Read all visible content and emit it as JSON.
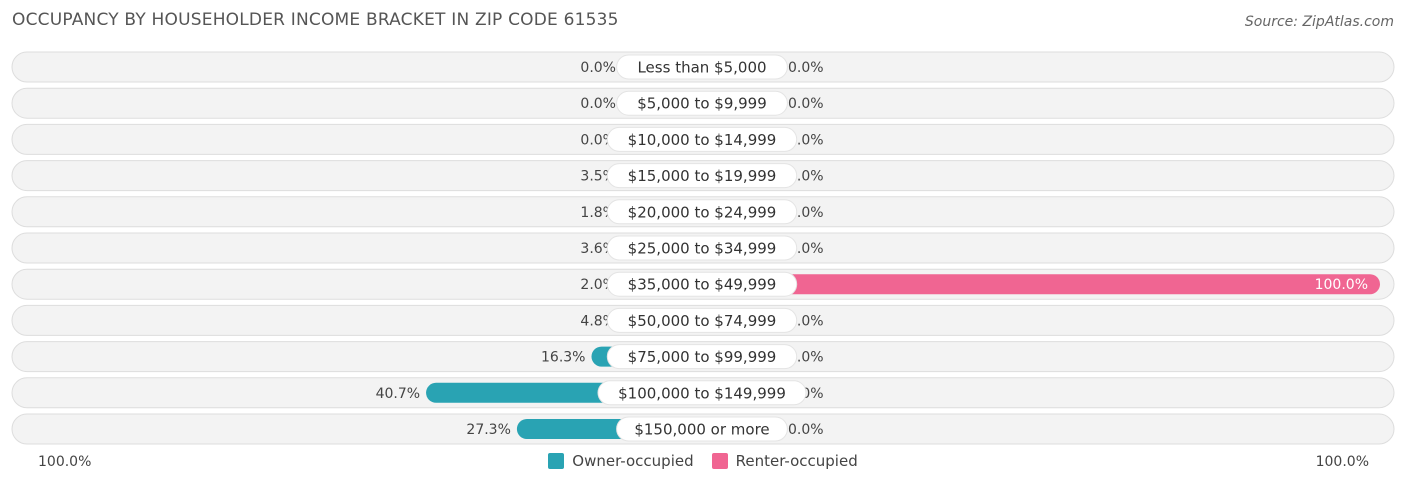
{
  "header": {
    "title": "OCCUPANCY BY HOUSEHOLDER INCOME BRACKET IN ZIP CODE 61535",
    "source": "Source: ZipAtlas.com"
  },
  "colors": {
    "owner": "#4bbcc8",
    "owner_light": "#88cdd6",
    "owner_dark": "#29a3b3",
    "renter": "#f06592",
    "renter_light": "#f5a8c1",
    "row_bg": "#f1f1f1",
    "row_border": "#dddddd"
  },
  "axis": {
    "left_label": "100.0%",
    "right_label": "100.0%"
  },
  "legend": {
    "owner_label": "Owner-occupied",
    "renter_label": "Renter-occupied"
  },
  "chart_data": {
    "type": "bar",
    "orientation": "diverging-horizontal",
    "categories": [
      "Less than $5,000",
      "$5,000 to $9,999",
      "$10,000 to $14,999",
      "$15,000 to $19,999",
      "$20,000 to $24,999",
      "$25,000 to $34,999",
      "$35,000 to $49,999",
      "$50,000 to $74,999",
      "$75,000 to $99,999",
      "$100,000 to $149,999",
      "$150,000 or more"
    ],
    "series": [
      {
        "name": "Owner-occupied",
        "values": [
          0.0,
          0.0,
          0.0,
          3.5,
          1.8,
          3.6,
          2.0,
          4.8,
          16.3,
          40.7,
          27.3
        ],
        "labels": [
          "0.0%",
          "0.0%",
          "0.0%",
          "3.5%",
          "1.8%",
          "3.6%",
          "2.0%",
          "4.8%",
          "16.3%",
          "40.7%",
          "27.3%"
        ]
      },
      {
        "name": "Renter-occupied",
        "values": [
          0.0,
          0.0,
          0.0,
          0.0,
          0.0,
          0.0,
          100.0,
          0.0,
          0.0,
          0.0,
          0.0
        ],
        "labels": [
          "0.0%",
          "0.0%",
          "0.0%",
          "0.0%",
          "0.0%",
          "0.0%",
          "100.0%",
          "0.0%",
          "0.0%",
          "0.0%",
          "0.0%"
        ]
      }
    ],
    "xlim": [
      -100,
      100
    ],
    "legend_position": "bottom-center",
    "grid": false
  }
}
